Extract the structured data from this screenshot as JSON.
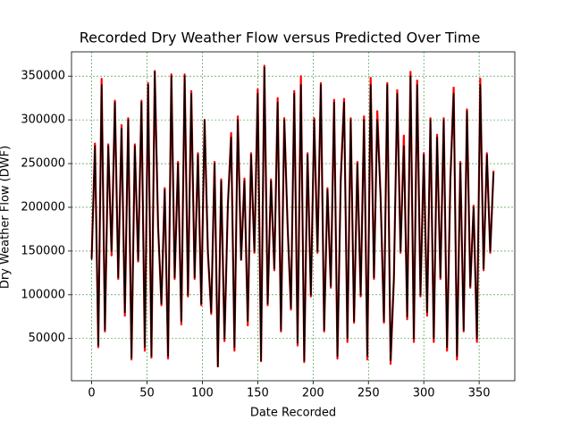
{
  "chart_data": {
    "type": "line",
    "title": "Recorded Dry Weather Flow versus Predicted Over Time",
    "x_label": "Date Recorded",
    "y_label": "Dry Weather Flow (DWF)",
    "xlim": [
      -18.2,
      382.2
    ],
    "ylim": [
      1700,
      377800
    ],
    "xticks": [
      0,
      50,
      100,
      150,
      200,
      250,
      300,
      350
    ],
    "yticks": [
      50000,
      100000,
      150000,
      200000,
      250000,
      300000,
      350000
    ],
    "grid": true,
    "x": [
      0,
      3,
      6,
      9,
      12,
      15,
      18,
      21,
      24,
      27,
      30,
      33,
      36,
      39,
      42,
      45,
      48,
      51,
      54,
      57,
      60,
      63,
      66,
      69,
      72,
      75,
      78,
      81,
      84,
      87,
      90,
      93,
      96,
      99,
      102,
      105,
      108,
      111,
      114,
      117,
      120,
      123,
      126,
      129,
      132,
      135,
      138,
      141,
      144,
      147,
      150,
      153,
      156,
      159,
      162,
      165,
      168,
      171,
      174,
      177,
      180,
      183,
      186,
      189,
      192,
      195,
      198,
      201,
      204,
      207,
      210,
      213,
      216,
      219,
      222,
      225,
      228,
      231,
      234,
      237,
      240,
      243,
      246,
      249,
      252,
      255,
      258,
      261,
      264,
      267,
      270,
      273,
      276,
      279,
      282,
      285,
      288,
      291,
      294,
      297,
      300,
      303,
      306,
      309,
      312,
      315,
      318,
      321,
      324,
      327,
      330,
      333,
      336,
      339,
      342,
      345,
      348,
      351,
      354,
      357,
      360,
      363
    ],
    "series": [
      {
        "color": "#ff0000",
        "values": [
          142000,
          273000,
          40000,
          347000,
          58000,
          272000,
          145000,
          322000,
          118000,
          294000,
          76000,
          302000,
          26000,
          272000,
          138000,
          322000,
          36000,
          342000,
          28000,
          356000,
          178000,
          88000,
          222000,
          27000,
          352000,
          118000,
          252000,
          66000,
          352000,
          98000,
          333000,
          118000,
          262000,
          88000,
          300000,
          148000,
          78000,
          252000,
          18000,
          232000,
          47000,
          202000,
          285000,
          36000,
          304000,
          140000,
          233000,
          65000,
          262000,
          148000,
          335000,
          24000,
          362000,
          88000,
          232000,
          128000,
          325000,
          58000,
          302000,
          178000,
          83000,
          333000,
          42000,
          350000,
          23000,
          262000,
          98000,
          302000,
          148000,
          342000,
          58000,
          222000,
          108000,
          323000,
          27000,
          232000,
          324000,
          46000,
          302000,
          68000,
          252000,
          98000,
          304000,
          26000,
          348000,
          118000,
          310000,
          212000,
          68000,
          342000,
          21000,
          118000,
          334000,
          148000,
          282000,
          72000,
          355000,
          46000,
          345000,
          98000,
          262000,
          76000,
          302000,
          46000,
          283000,
          118000,
          302000,
          36000,
          232000,
          337000,
          26000,
          252000,
          58000,
          312000,
          108000,
          202000,
          46000,
          347000,
          128000,
          262000,
          148000,
          242000
        ]
      },
      {
        "color": "#000000",
        "values": [
          140000,
          270000,
          42000,
          340000,
          60000,
          270000,
          150000,
          320000,
          120000,
          290000,
          80000,
          300000,
          28000,
          270000,
          140000,
          320000,
          40000,
          340000,
          30000,
          355000,
          180000,
          90000,
          220000,
          30000,
          350000,
          120000,
          250000,
          70000,
          350000,
          100000,
          330000,
          120000,
          260000,
          90000,
          300000,
          150000,
          80000,
          250000,
          18000,
          230000,
          50000,
          200000,
          280000,
          40000,
          300000,
          140000,
          230000,
          70000,
          260000,
          150000,
          330000,
          25000,
          360000,
          90000,
          230000,
          130000,
          320000,
          60000,
          300000,
          180000,
          85000,
          330000,
          45000,
          340000,
          25000,
          260000,
          100000,
          300000,
          150000,
          340000,
          60000,
          220000,
          110000,
          320000,
          30000,
          230000,
          320000,
          50000,
          300000,
          70000,
          250000,
          100000,
          300000,
          30000,
          340000,
          120000,
          300000,
          210000,
          70000,
          340000,
          25000,
          120000,
          330000,
          150000,
          270000,
          75000,
          350000,
          50000,
          340000,
          100000,
          260000,
          80000,
          300000,
          50000,
          280000,
          120000,
          300000,
          40000,
          230000,
          330000,
          30000,
          250000,
          60000,
          310000,
          110000,
          200000,
          50000,
          340000,
          130000,
          260000,
          150000,
          240000
        ]
      }
    ]
  }
}
